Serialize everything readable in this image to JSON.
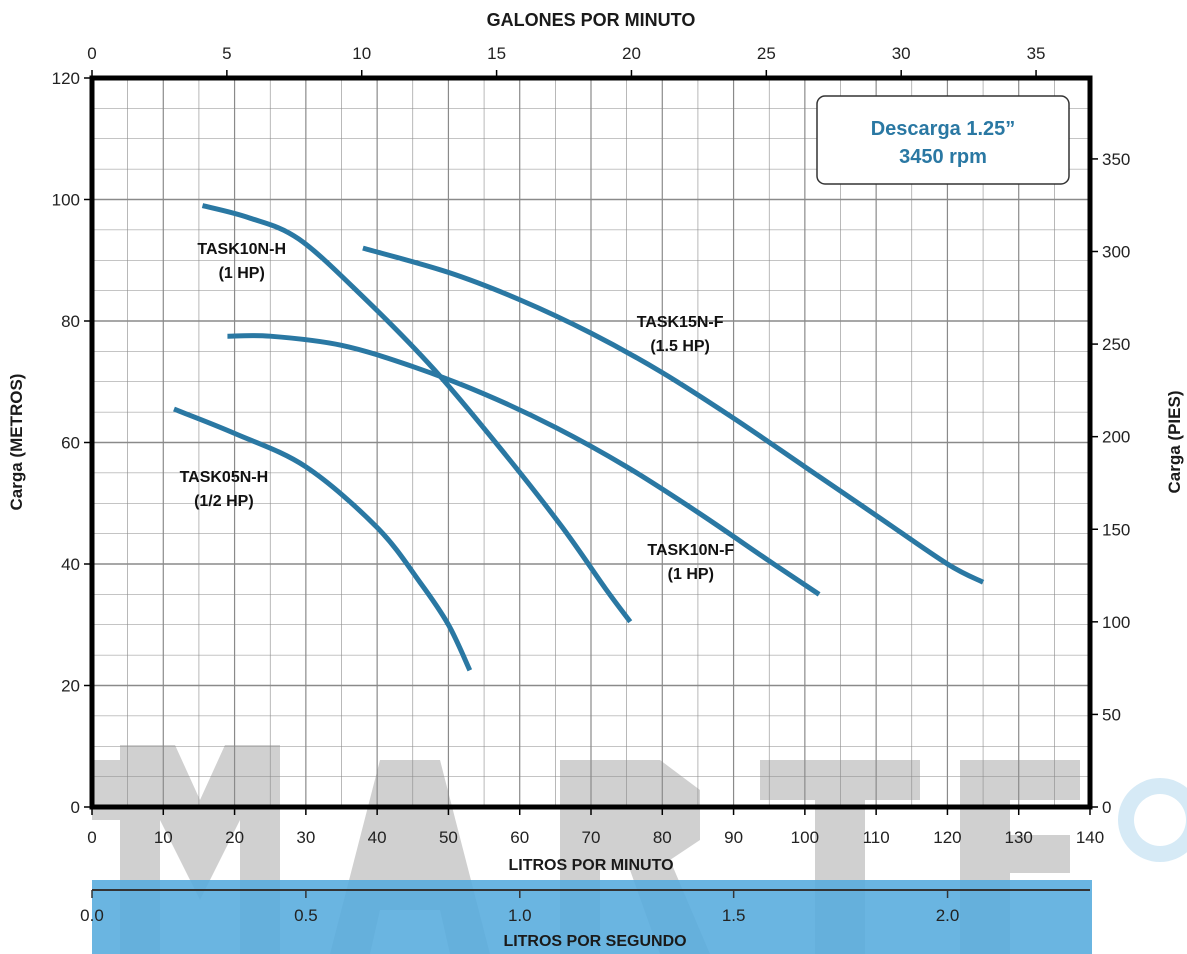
{
  "chart_data": {
    "type": "line",
    "title": "",
    "colors": {
      "curve": "#2a78a3",
      "grid": "#8a8a8a",
      "frame": "#000000",
      "annotation_text": "#2a78a3",
      "watermark": "#3a9fd6"
    },
    "x_axis_bottom": {
      "label": "LITROS POR MINUTO",
      "range": [
        0,
        140
      ],
      "ticks": [
        "0",
        "10",
        "20",
        "30",
        "40",
        "50",
        "60",
        "70",
        "80",
        "90",
        "100",
        "110",
        "120",
        "130",
        "140"
      ]
    },
    "x_axis_top": {
      "label": "GALONES POR MINUTO",
      "range": [
        0,
        37
      ],
      "ticks": [
        "0",
        "5",
        "10",
        "15",
        "20",
        "25",
        "30",
        "35"
      ]
    },
    "x_axis_secondary": {
      "label": "LITROS POR SEGUNDO",
      "range": [
        0,
        2.333
      ],
      "ticks": [
        "0.0",
        "0.5",
        "1.0",
        "1.5",
        "2.0"
      ]
    },
    "y_axis_left": {
      "label": "Carga (METROS)",
      "range": [
        0,
        120
      ],
      "ticks": [
        "0",
        "20",
        "40",
        "60",
        "80",
        "100",
        "120"
      ]
    },
    "y_axis_right": {
      "label": "Carga (PIES)",
      "range": [
        0,
        393.7
      ],
      "ticks": [
        "0",
        "50",
        "100",
        "150",
        "200",
        "250",
        "300",
        "350"
      ]
    },
    "grid": true,
    "annotation": {
      "line1": "Descarga 1.25”",
      "line2": "3450 rpm",
      "position": "top-right"
    },
    "series": [
      {
        "name": "TASK05N-H (1/2 HP)",
        "label_line1": "TASK05N-H",
        "label_line2": "(1/2 HP)",
        "label_at": [
          18.5,
          53.5
        ],
        "x": [
          11.5,
          20,
          30,
          40,
          46,
          50,
          53
        ],
        "y": [
          65.5,
          61.5,
          56,
          46,
          37,
          30,
          22.5
        ]
      },
      {
        "name": "TASK10N-H (1 HP)",
        "label_line1": "TASK10N-H",
        "label_line2": "(1 HP)",
        "label_at": [
          21,
          91
        ],
        "x": [
          15.5,
          22,
          29,
          38,
          48,
          58,
          66,
          72,
          75.5
        ],
        "y": [
          99,
          97,
          93.5,
          84,
          72,
          58,
          46,
          36,
          30.5
        ]
      },
      {
        "name": "TASK10N-F (1 HP)",
        "label_line1": "TASK10N-F",
        "label_line2": "(1 HP)",
        "label_at": [
          84,
          41.5
        ],
        "x": [
          19,
          25,
          35,
          45,
          55,
          65,
          75,
          85,
          95,
          102
        ],
        "y": [
          77.5,
          77.5,
          76,
          72.5,
          68,
          62.5,
          56,
          48.5,
          40.5,
          35
        ]
      },
      {
        "name": "TASK15N-F (1.5 HP)",
        "label_line1": "TASK15N-F",
        "label_line2": "(1.5 HP)",
        "label_at": [
          82.5,
          79
        ],
        "x": [
          38,
          50,
          60,
          70,
          80,
          90,
          100,
          110,
          120,
          125
        ],
        "y": [
          92,
          88,
          83.5,
          78,
          71.5,
          64,
          56,
          48,
          40,
          37
        ]
      }
    ]
  }
}
